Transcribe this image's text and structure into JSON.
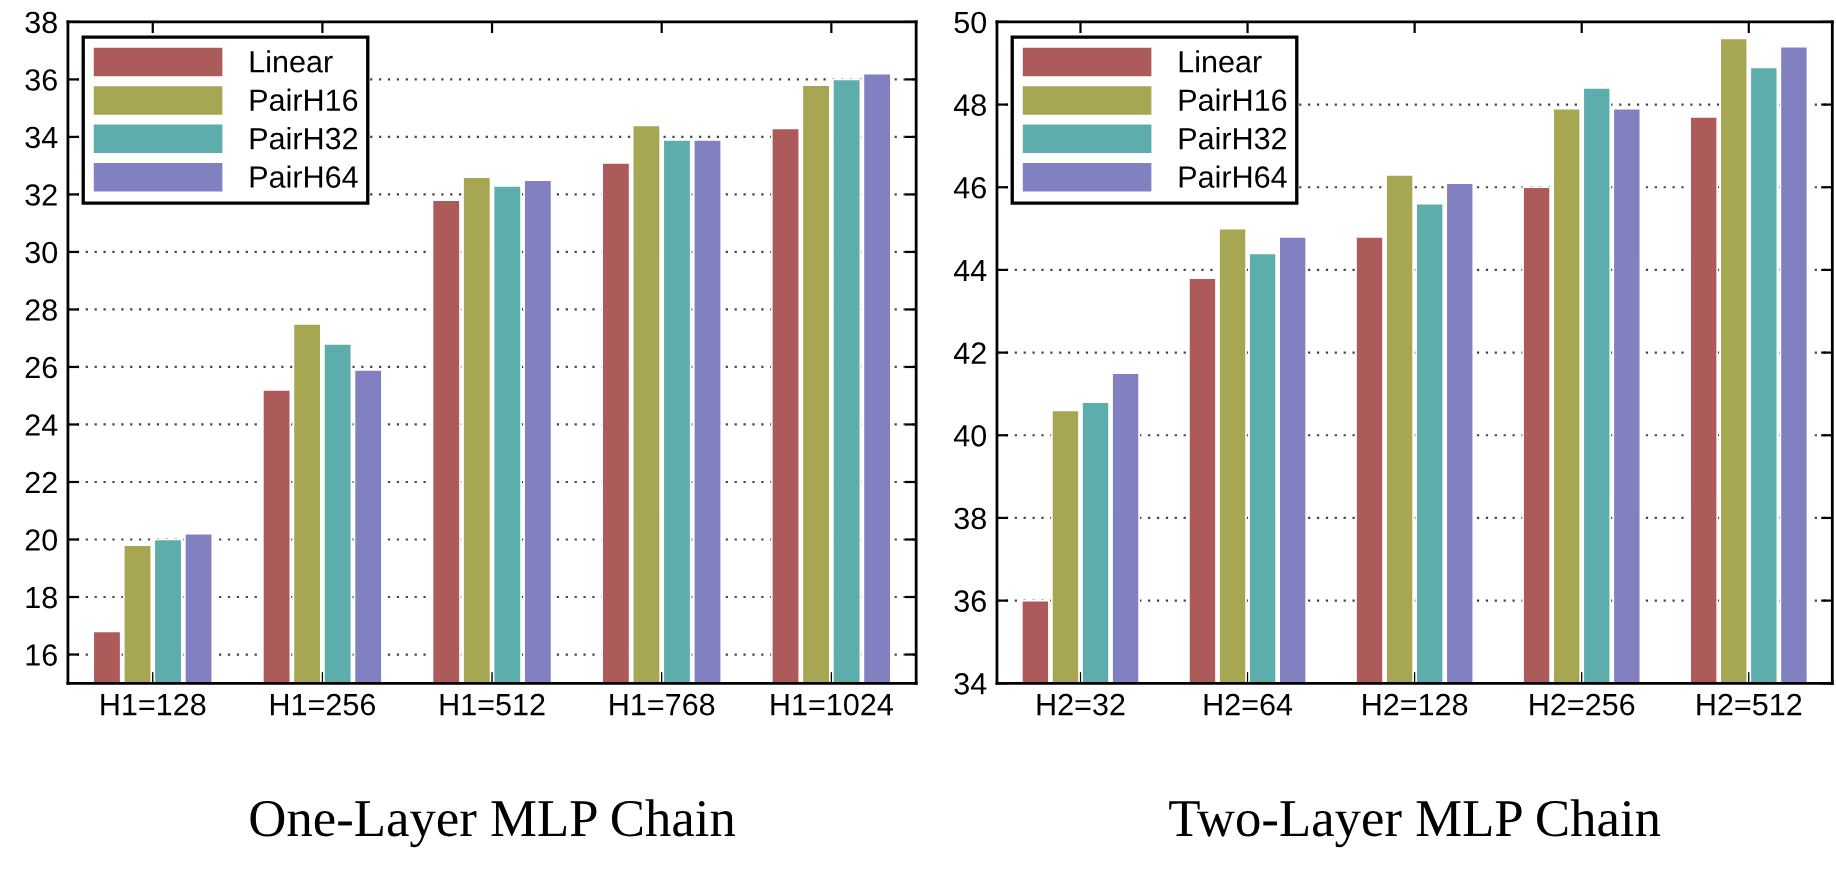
{
  "chart_data": [
    {
      "type": "bar",
      "xlabel": "One-Layer MLP Chain",
      "categories": [
        "H1=128",
        "H1=256",
        "H1=512",
        "H1=768",
        "H1=1024"
      ],
      "ylim": [
        15,
        38
      ],
      "yticks": [
        16,
        18,
        20,
        22,
        24,
        26,
        28,
        30,
        32,
        34,
        36,
        38
      ],
      "grid": "y",
      "legend": "top left",
      "series": [
        {
          "name": "Linear",
          "color": "#ad5a5a",
          "values": [
            16.8,
            25.2,
            31.8,
            33.1,
            34.3
          ]
        },
        {
          "name": "PairH16",
          "color": "#a7a653",
          "values": [
            19.8,
            27.5,
            32.6,
            34.4,
            35.8
          ]
        },
        {
          "name": "PairH32",
          "color": "#5dadac",
          "values": [
            20.0,
            26.8,
            32.3,
            33.9,
            36.0
          ]
        },
        {
          "name": "PairH64",
          "color": "#8180c0",
          "values": [
            20.2,
            25.9,
            32.5,
            33.9,
            36.2
          ]
        }
      ]
    },
    {
      "type": "bar",
      "xlabel": "Two-Layer MLP Chain",
      "categories": [
        "H2=32",
        "H2=64",
        "H2=128",
        "H2=256",
        "H2=512"
      ],
      "ylim": [
        34,
        50
      ],
      "yticks": [
        34,
        36,
        38,
        40,
        42,
        44,
        46,
        48,
        50
      ],
      "grid": "y",
      "legend": "top left",
      "series": [
        {
          "name": "Linear",
          "color": "#ad5a5a",
          "values": [
            36.0,
            43.8,
            44.8,
            46.0,
            47.7
          ]
        },
        {
          "name": "PairH16",
          "color": "#a7a653",
          "values": [
            40.6,
            45.0,
            46.3,
            47.9,
            49.6
          ]
        },
        {
          "name": "PairH32",
          "color": "#5dadac",
          "values": [
            40.8,
            44.4,
            45.6,
            48.4,
            48.9
          ]
        },
        {
          "name": "PairH64",
          "color": "#8180c0",
          "values": [
            41.5,
            44.8,
            46.1,
            47.9,
            49.4
          ]
        }
      ]
    }
  ]
}
